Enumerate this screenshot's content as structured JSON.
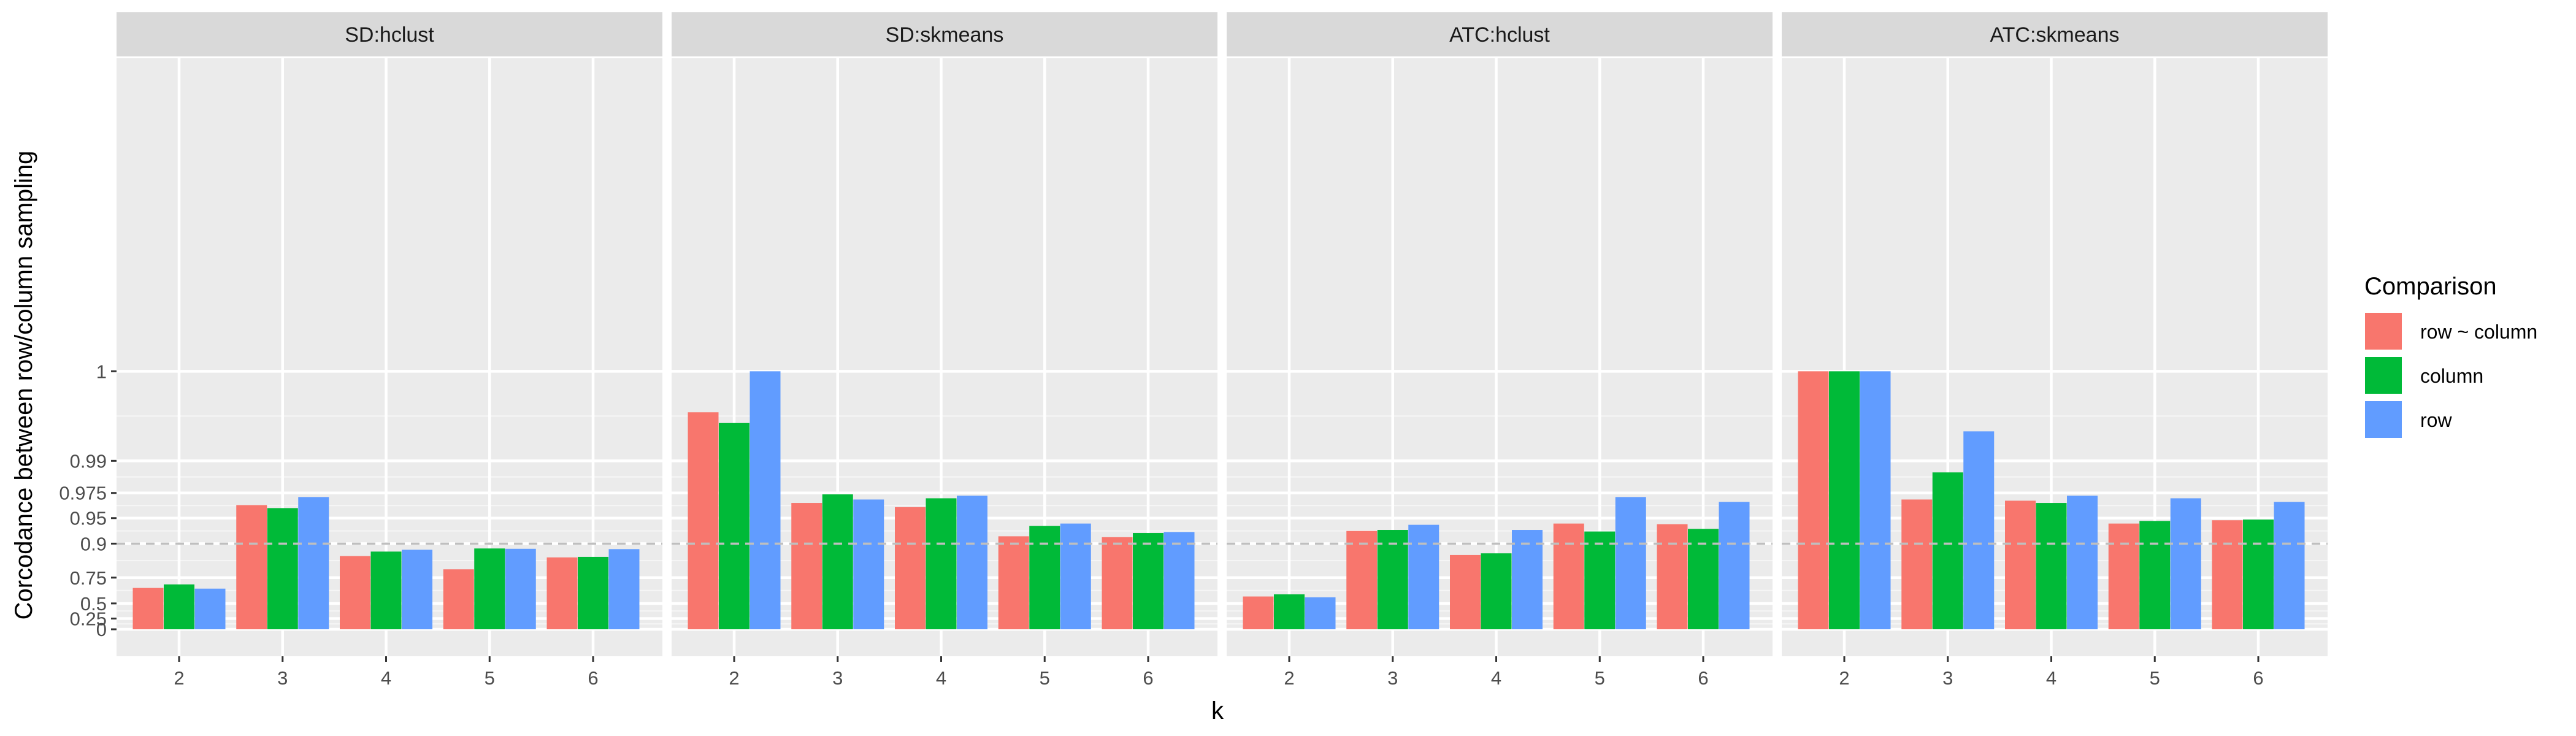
{
  "chart_data": {
    "type": "bar",
    "facets": [
      "SD:hclust",
      "SD:skmeans",
      "ATC:hclust",
      "ATC:skmeans"
    ],
    "categories": [
      "2",
      "3",
      "4",
      "5",
      "6"
    ],
    "xlabel": "k",
    "ylabel": "Corcodance between row/column sampling",
    "y_ticks": [
      "0",
      "0.25",
      "0.5",
      "0.75",
      "0.9",
      "0.95",
      "0.975",
      "0.99",
      "1"
    ],
    "y_scale": "nonlinear (1 - y)",
    "reference_line": 0.9,
    "legend": {
      "title": "Comparison",
      "position": "right",
      "entries": [
        "row ~ column",
        "column",
        "row"
      ]
    },
    "colors": {
      "row ~ column": "#F8766D",
      "column": "#00BA38",
      "row": "#619CFF"
    },
    "grid": true,
    "panels": [
      {
        "facet": "SD:hclust",
        "series": [
          {
            "name": "row ~ column",
            "values": [
              0.67,
              0.965,
              0.86,
              0.8,
              0.855
            ]
          },
          {
            "name": "column",
            "values": [
              0.7,
              0.962,
              0.876,
              0.886,
              0.857
            ]
          },
          {
            "name": "row",
            "values": [
              0.664,
              0.972,
              0.882,
              0.885,
              0.884
            ]
          }
        ]
      },
      {
        "facet": "SD:skmeans",
        "series": [
          {
            "name": "row ~ column",
            "values": [
              0.998,
              0.967,
              0.963,
              0.918,
              0.916
            ]
          },
          {
            "name": "column",
            "values": [
              0.997,
              0.974,
              0.971,
              0.938,
              0.925
            ]
          },
          {
            "name": "row",
            "values": [
              1.0,
              0.97,
              0.973,
              0.942,
              0.927
            ]
          }
        ]
      },
      {
        "facet": "ATC:hclust",
        "series": [
          {
            "name": "row ~ column",
            "values": [
              0.585,
              0.929,
              0.864,
              0.942,
              0.941
            ]
          },
          {
            "name": "column",
            "values": [
              0.608,
              0.931,
              0.87,
              0.928,
              0.933
            ]
          },
          {
            "name": "row",
            "values": [
              0.576,
              0.94,
              0.931,
              0.972,
              0.968
            ]
          }
        ]
      },
      {
        "facet": "ATC:skmeans",
        "series": [
          {
            "name": "row ~ column",
            "values": [
              1.0,
              0.97,
              0.969,
              0.942,
              0.947
            ]
          },
          {
            "name": "column",
            "values": [
              1.0,
              0.986,
              0.967,
              0.946,
              0.948
            ]
          },
          {
            "name": "row",
            "values": [
              1.0,
              0.996,
              0.973,
              0.971,
              0.968
            ]
          }
        ]
      }
    ]
  }
}
